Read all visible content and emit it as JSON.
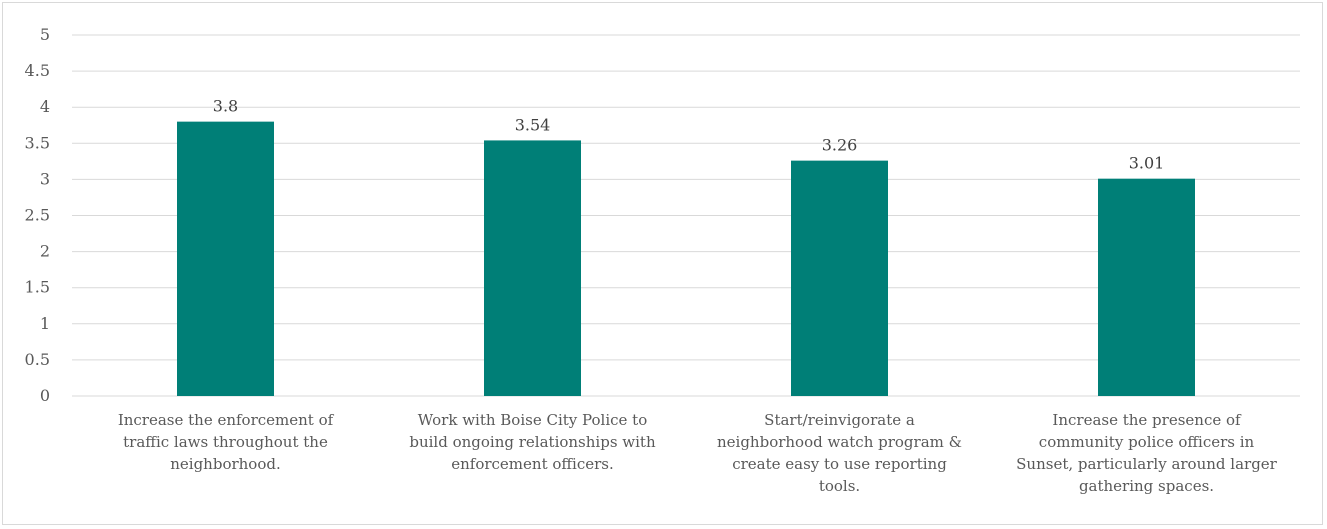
{
  "chart_data": {
    "type": "bar",
    "categories": [
      [
        "Increase the enforcement of",
        "traffic laws throughout the",
        "neighborhood."
      ],
      [
        "Work with Boise City Police to",
        "build ongoing relationships with",
        "enforcement officers."
      ],
      [
        "Start/reinvigorate a",
        "neighborhood watch program &",
        "create easy to use reporting",
        "tools."
      ],
      [
        "Increase the presence of",
        "community police officers in",
        "Sunset, particularly around larger",
        "gathering spaces."
      ]
    ],
    "values": [
      3.8,
      3.54,
      3.26,
      3.01
    ],
    "data_labels": [
      "3.8",
      "3.54",
      "3.26",
      "3.01"
    ],
    "title": "",
    "xlabel": "",
    "ylabel": "",
    "ylim": [
      0,
      5
    ],
    "yticks": [
      "0",
      "0.5",
      "1",
      "1.5",
      "2",
      "2.5",
      "3",
      "3.5",
      "4",
      "4.5",
      "5"
    ],
    "grid": true,
    "legend": "none",
    "bar_color": "#007f77",
    "grid_color": "#d9d9d9"
  }
}
